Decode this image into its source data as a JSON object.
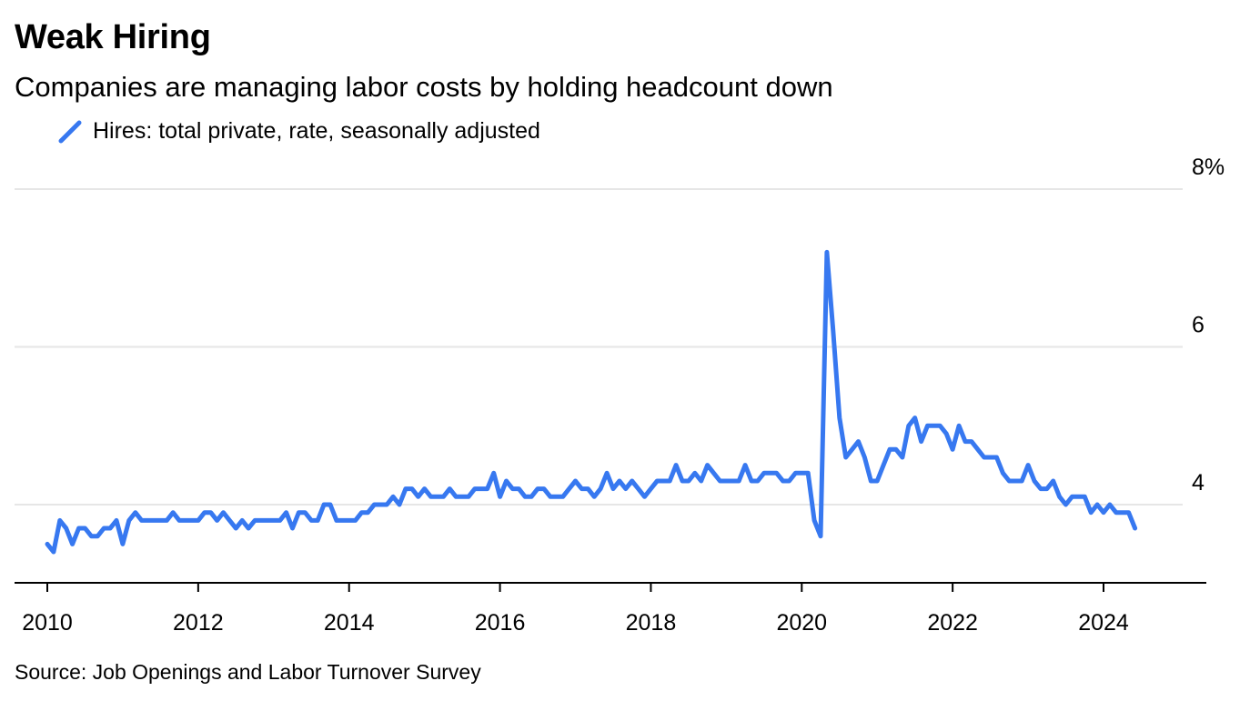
{
  "title": "Weak Hiring",
  "subtitle": "Companies are managing labor costs by holding headcount down",
  "source": "Source: Job Openings and Labor Turnover Survey",
  "colors": {
    "series": "#3778f0",
    "grid": "#e6e6e6",
    "axis": "#000000"
  },
  "chart_data": {
    "type": "line",
    "title": "Weak Hiring",
    "subtitle": "Companies are managing labor costs by holding headcount down",
    "xlabel": "",
    "ylabel": "",
    "xlim": [
      2009.6,
      2025.4
    ],
    "ylim": [
      3,
      8
    ],
    "yticks": [
      4,
      6,
      8
    ],
    "ytick_labels": [
      "4",
      "6",
      "8%"
    ],
    "xticks": [
      2010,
      2012,
      2014,
      2016,
      2018,
      2020,
      2022,
      2024
    ],
    "xtick_labels": [
      "2010",
      "2012",
      "2014",
      "2016",
      "2018",
      "2020",
      "2022",
      "2024"
    ],
    "grid": true,
    "legend_position": "top-left",
    "series": [
      {
        "name": "Hires: total private, rate, seasonally adjusted",
        "start": "2010-01",
        "frequency": "monthly",
        "values": [
          3.5,
          3.4,
          3.8,
          3.7,
          3.5,
          3.7,
          3.7,
          3.6,
          3.6,
          3.7,
          3.7,
          3.8,
          3.5,
          3.8,
          3.9,
          3.8,
          3.8,
          3.8,
          3.8,
          3.8,
          3.9,
          3.8,
          3.8,
          3.8,
          3.8,
          3.9,
          3.9,
          3.8,
          3.9,
          3.8,
          3.7,
          3.8,
          3.7,
          3.8,
          3.8,
          3.8,
          3.8,
          3.8,
          3.9,
          3.7,
          3.9,
          3.9,
          3.8,
          3.8,
          4.0,
          4.0,
          3.8,
          3.8,
          3.8,
          3.8,
          3.9,
          3.9,
          4.0,
          4.0,
          4.0,
          4.1,
          4.0,
          4.2,
          4.2,
          4.1,
          4.2,
          4.1,
          4.1,
          4.1,
          4.2,
          4.1,
          4.1,
          4.1,
          4.2,
          4.2,
          4.2,
          4.4,
          4.1,
          4.3,
          4.2,
          4.2,
          4.1,
          4.1,
          4.2,
          4.2,
          4.1,
          4.1,
          4.1,
          4.2,
          4.3,
          4.2,
          4.2,
          4.1,
          4.2,
          4.4,
          4.2,
          4.3,
          4.2,
          4.3,
          4.2,
          4.1,
          4.2,
          4.3,
          4.3,
          4.3,
          4.5,
          4.3,
          4.3,
          4.4,
          4.3,
          4.5,
          4.4,
          4.3,
          4.3,
          4.3,
          4.3,
          4.5,
          4.3,
          4.3,
          4.4,
          4.4,
          4.4,
          4.3,
          4.3,
          4.4,
          4.4,
          4.4,
          3.8,
          3.6,
          7.2,
          6.2,
          5.1,
          4.6,
          4.7,
          4.8,
          4.6,
          4.3,
          4.3,
          4.5,
          4.7,
          4.7,
          4.6,
          5.0,
          5.1,
          4.8,
          5.0,
          5.0,
          5.0,
          4.9,
          4.7,
          5.0,
          4.8,
          4.8,
          4.7,
          4.6,
          4.6,
          4.6,
          4.4,
          4.3,
          4.3,
          4.3,
          4.5,
          4.3,
          4.2,
          4.2,
          4.3,
          4.1,
          4.0,
          4.1,
          4.1,
          4.1,
          3.9,
          4.0,
          3.9,
          4.0,
          3.9,
          3.9,
          3.9,
          3.7
        ]
      }
    ]
  }
}
